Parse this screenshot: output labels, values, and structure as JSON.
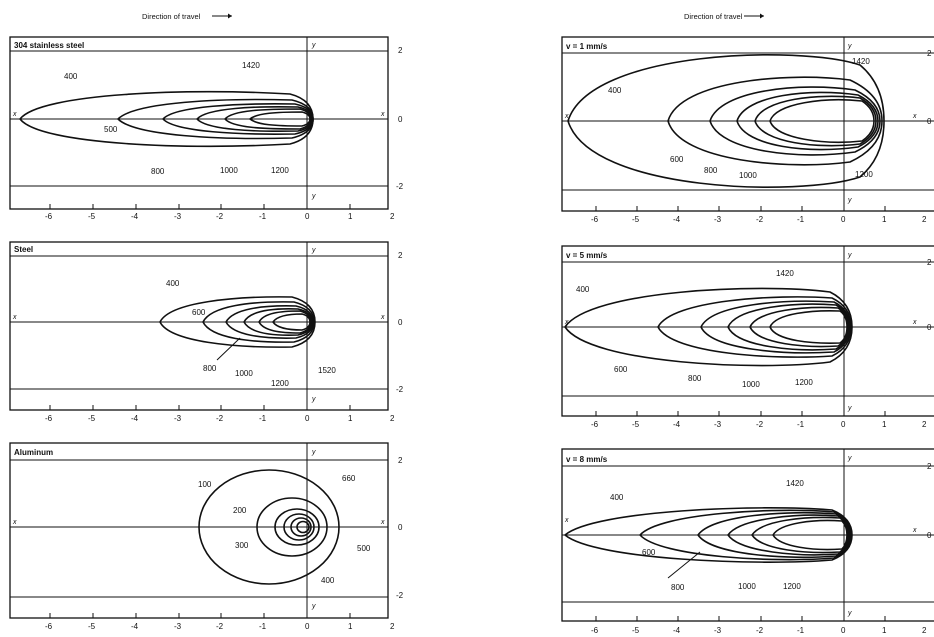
{
  "direction_label": "Direction of travel",
  "panels": [
    {
      "title": "304 stainless steel",
      "iso_labels": [
        "400",
        "500",
        "800",
        "1000",
        "1200",
        "1420"
      ],
      "x_ticks": [
        "-6",
        "-5",
        "-4",
        "-3",
        "-2",
        "-1",
        "0",
        "1",
        "2"
      ],
      "y_ticks": [
        "2",
        "0",
        "-2"
      ],
      "axis_x": "x",
      "axis_y": "y"
    },
    {
      "title": "Steel",
      "iso_labels": [
        "400",
        "600",
        "800",
        "1000",
        "1200",
        "1520"
      ],
      "x_ticks": [
        "-6",
        "-5",
        "-4",
        "-3",
        "-2",
        "-1",
        "0",
        "1",
        "2"
      ],
      "y_ticks": [
        "2",
        "0",
        "-2"
      ],
      "axis_x": "x",
      "axis_y": "y"
    },
    {
      "title": "Aluminum",
      "iso_labels": [
        "100",
        "200",
        "300",
        "400",
        "500",
        "660"
      ],
      "x_ticks": [
        "-6",
        "-5",
        "-4",
        "-3",
        "-2",
        "-1",
        "0",
        "1",
        "2"
      ],
      "y_ticks": [
        "2",
        "0",
        "-2"
      ],
      "axis_x": "x",
      "axis_y": "y"
    },
    {
      "title": "v = 1 mm/s",
      "iso_labels": [
        "400",
        "600",
        "800",
        "1000",
        "1200",
        "1420"
      ],
      "x_ticks": [
        "-6",
        "-5",
        "-4",
        "-3",
        "-2",
        "-1",
        "0",
        "1",
        "2"
      ],
      "y_ticks": [
        "2",
        "0"
      ],
      "axis_x": "x",
      "axis_y": "y"
    },
    {
      "title": "v = 5 mm/s",
      "iso_labels": [
        "400",
        "600",
        "800",
        "1000",
        "1200",
        "1420"
      ],
      "x_ticks": [
        "-6",
        "-5",
        "-4",
        "-3",
        "-2",
        "-1",
        "0",
        "1",
        "2"
      ],
      "y_ticks": [
        "2",
        "0"
      ],
      "axis_x": "x",
      "axis_y": "y"
    },
    {
      "title": "v = 8 mm/s",
      "iso_labels": [
        "400",
        "600",
        "800",
        "1000",
        "1200",
        "1420"
      ],
      "x_ticks": [
        "-6",
        "-5",
        "-4",
        "-3",
        "-2",
        "-1",
        "0",
        "1",
        "2"
      ],
      "y_ticks": [
        "2",
        "0"
      ],
      "axis_x": "x",
      "axis_y": "y"
    }
  ]
}
